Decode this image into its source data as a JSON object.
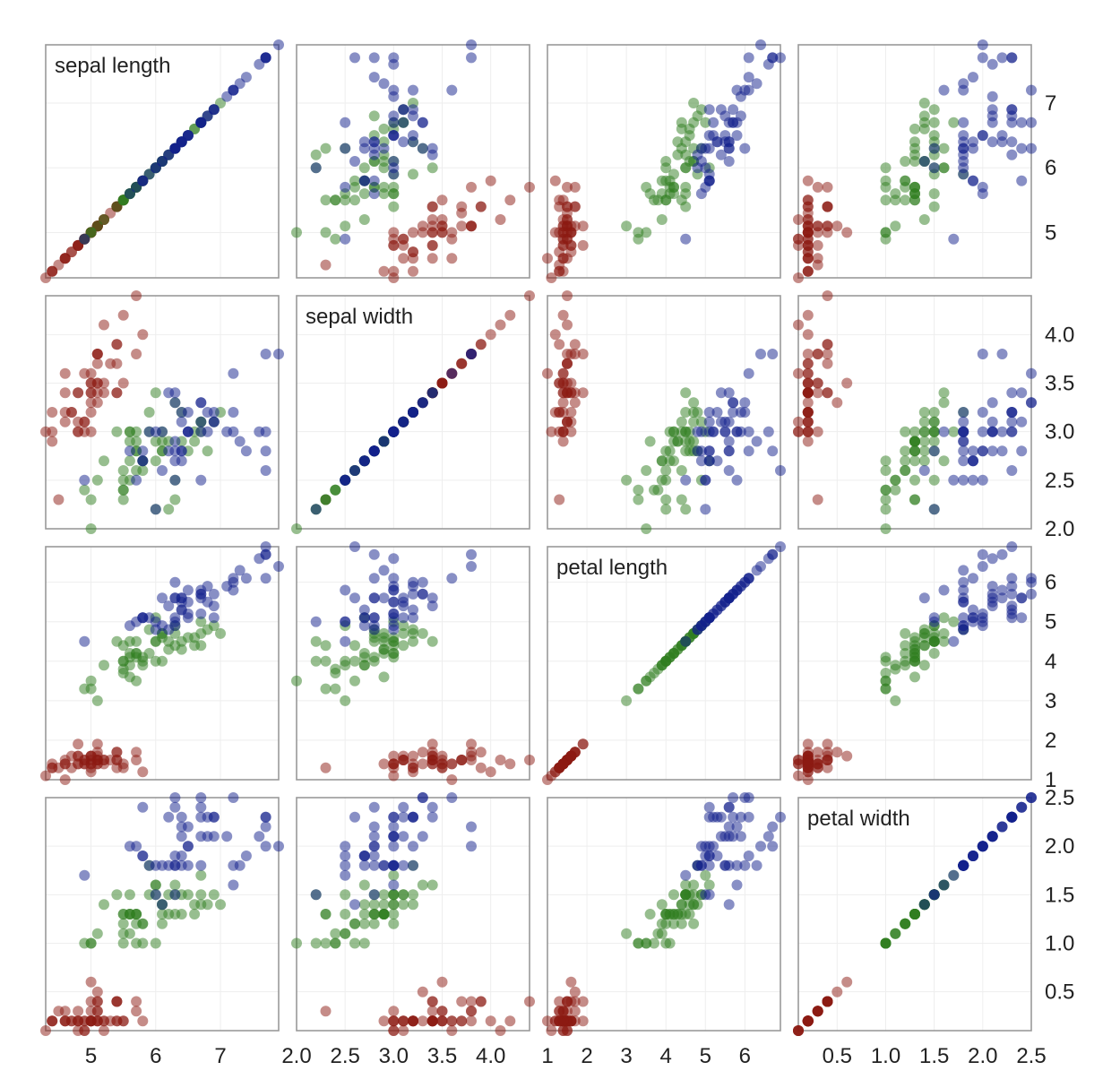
{
  "chart_data": {
    "type": "scatter",
    "subtype": "scatter-matrix",
    "title": "",
    "variables": [
      {
        "key": "sepal_length",
        "label": "sepal length",
        "range": [
          4.3,
          7.9
        ],
        "ticks": [
          5,
          6,
          7
        ],
        "tick_labels": [
          "5",
          "6",
          "7"
        ]
      },
      {
        "key": "sepal_width",
        "label": "sepal width",
        "range": [
          2.0,
          4.4
        ],
        "ticks": [
          2.0,
          2.5,
          3.0,
          3.5,
          4.0
        ],
        "tick_labels": [
          "2.0",
          "2.5",
          "3.0",
          "3.5",
          "4.0"
        ]
      },
      {
        "key": "petal_length",
        "label": "petal length",
        "range": [
          1.0,
          6.9
        ],
        "ticks": [
          1,
          2,
          3,
          4,
          5,
          6
        ],
        "tick_labels": [
          "1",
          "2",
          "3",
          "4",
          "5",
          "6"
        ]
      },
      {
        "key": "petal_width",
        "label": "petal width",
        "range": [
          0.1,
          2.5
        ],
        "ticks": [
          0.5,
          1.0,
          1.5,
          2.0,
          2.5
        ],
        "tick_labels": [
          "0.5",
          "1.0",
          "1.5",
          "2.0",
          "2.5"
        ]
      }
    ],
    "bottom_axis_ticks": [
      [
        "5",
        "6",
        "7"
      ],
      [
        "2.0",
        "2.5",
        "3.0",
        "3.5",
        "4.0"
      ],
      [
        "1",
        "2",
        "3",
        "4",
        "5",
        "6"
      ],
      [
        "0.5",
        "1.0",
        "1.5",
        "2.0",
        "2.5"
      ]
    ],
    "right_axis_ticks": [
      [
        "5",
        "6",
        "7"
      ],
      [
        "2.0",
        "2.5",
        "3.0",
        "3.5",
        "4.0"
      ],
      [
        "1",
        "2",
        "3",
        "4",
        "5",
        "6"
      ],
      [
        "0.5",
        "1.0",
        "1.5",
        "2.0",
        "2.5"
      ]
    ],
    "marker_opacity": 0.5,
    "grid": true,
    "legend": "none",
    "series": [
      {
        "color": "#8b1a12",
        "points": [
          [
            5.1,
            3.5,
            1.4,
            0.2
          ],
          [
            4.9,
            3.0,
            1.4,
            0.2
          ],
          [
            4.7,
            3.2,
            1.3,
            0.2
          ],
          [
            4.6,
            3.1,
            1.5,
            0.2
          ],
          [
            5.0,
            3.6,
            1.4,
            0.2
          ],
          [
            5.4,
            3.9,
            1.7,
            0.4
          ],
          [
            4.6,
            3.4,
            1.4,
            0.3
          ],
          [
            5.0,
            3.4,
            1.5,
            0.2
          ],
          [
            4.4,
            2.9,
            1.4,
            0.2
          ],
          [
            4.9,
            3.1,
            1.5,
            0.1
          ],
          [
            5.4,
            3.7,
            1.5,
            0.2
          ],
          [
            4.8,
            3.4,
            1.6,
            0.2
          ],
          [
            4.8,
            3.0,
            1.4,
            0.1
          ],
          [
            4.3,
            3.0,
            1.1,
            0.1
          ],
          [
            5.8,
            4.0,
            1.2,
            0.2
          ],
          [
            5.7,
            4.4,
            1.5,
            0.4
          ],
          [
            5.4,
            3.9,
            1.3,
            0.4
          ],
          [
            5.1,
            3.5,
            1.4,
            0.3
          ],
          [
            5.7,
            3.8,
            1.7,
            0.3
          ],
          [
            5.1,
            3.8,
            1.5,
            0.3
          ],
          [
            5.4,
            3.4,
            1.7,
            0.2
          ],
          [
            5.1,
            3.7,
            1.5,
            0.4
          ],
          [
            4.6,
            3.6,
            1.0,
            0.2
          ],
          [
            5.1,
            3.3,
            1.7,
            0.5
          ],
          [
            4.8,
            3.4,
            1.9,
            0.2
          ],
          [
            5.0,
            3.0,
            1.6,
            0.2
          ],
          [
            5.0,
            3.4,
            1.6,
            0.4
          ],
          [
            5.2,
            3.5,
            1.5,
            0.2
          ],
          [
            5.2,
            3.4,
            1.4,
            0.2
          ],
          [
            4.7,
            3.2,
            1.6,
            0.2
          ],
          [
            4.8,
            3.1,
            1.6,
            0.2
          ],
          [
            5.4,
            3.4,
            1.5,
            0.4
          ],
          [
            5.2,
            4.1,
            1.5,
            0.1
          ],
          [
            5.5,
            4.2,
            1.4,
            0.2
          ],
          [
            4.9,
            3.1,
            1.5,
            0.2
          ],
          [
            5.0,
            3.2,
            1.2,
            0.2
          ],
          [
            5.5,
            3.5,
            1.3,
            0.2
          ],
          [
            4.9,
            3.6,
            1.4,
            0.1
          ],
          [
            4.4,
            3.0,
            1.3,
            0.2
          ],
          [
            5.1,
            3.4,
            1.5,
            0.2
          ],
          [
            5.0,
            3.5,
            1.3,
            0.3
          ],
          [
            4.5,
            2.3,
            1.3,
            0.3
          ],
          [
            4.4,
            3.2,
            1.3,
            0.2
          ],
          [
            5.0,
            3.5,
            1.6,
            0.6
          ],
          [
            5.1,
            3.8,
            1.9,
            0.4
          ],
          [
            4.8,
            3.0,
            1.4,
            0.3
          ],
          [
            5.1,
            3.8,
            1.6,
            0.2
          ],
          [
            4.6,
            3.2,
            1.4,
            0.2
          ],
          [
            5.3,
            3.7,
            1.5,
            0.2
          ],
          [
            5.0,
            3.3,
            1.4,
            0.2
          ]
        ]
      },
      {
        "color": "#2f7d1f",
        "points": [
          [
            7.0,
            3.2,
            4.7,
            1.4
          ],
          [
            6.4,
            3.2,
            4.5,
            1.5
          ],
          [
            6.9,
            3.1,
            4.9,
            1.5
          ],
          [
            5.5,
            2.3,
            4.0,
            1.3
          ],
          [
            6.5,
            2.8,
            4.6,
            1.5
          ],
          [
            5.7,
            2.8,
            4.5,
            1.3
          ],
          [
            6.3,
            3.3,
            4.7,
            1.6
          ],
          [
            4.9,
            2.4,
            3.3,
            1.0
          ],
          [
            6.6,
            2.9,
            4.6,
            1.3
          ],
          [
            5.2,
            2.7,
            3.9,
            1.4
          ],
          [
            5.0,
            2.0,
            3.5,
            1.0
          ],
          [
            5.9,
            3.0,
            4.2,
            1.5
          ],
          [
            6.0,
            2.2,
            4.0,
            1.0
          ],
          [
            6.1,
            2.9,
            4.7,
            1.4
          ],
          [
            5.6,
            2.9,
            3.6,
            1.3
          ],
          [
            6.7,
            3.1,
            4.4,
            1.4
          ],
          [
            5.6,
            3.0,
            4.5,
            1.5
          ],
          [
            5.8,
            2.7,
            4.1,
            1.0
          ],
          [
            6.2,
            2.2,
            4.5,
            1.5
          ],
          [
            5.6,
            2.5,
            3.9,
            1.1
          ],
          [
            5.9,
            3.2,
            4.8,
            1.8
          ],
          [
            6.1,
            2.8,
            4.0,
            1.3
          ],
          [
            6.3,
            2.5,
            4.9,
            1.5
          ],
          [
            6.1,
            2.8,
            4.7,
            1.2
          ],
          [
            6.4,
            2.9,
            4.3,
            1.3
          ],
          [
            6.6,
            3.0,
            4.4,
            1.4
          ],
          [
            6.8,
            2.8,
            4.8,
            1.4
          ],
          [
            6.7,
            3.0,
            5.0,
            1.7
          ],
          [
            6.0,
            2.9,
            4.5,
            1.5
          ],
          [
            5.7,
            2.6,
            3.5,
            1.0
          ],
          [
            5.5,
            2.4,
            3.8,
            1.1
          ],
          [
            5.5,
            2.4,
            3.7,
            1.0
          ],
          [
            5.8,
            2.7,
            3.9,
            1.2
          ],
          [
            6.0,
            2.7,
            5.1,
            1.6
          ],
          [
            5.4,
            3.0,
            4.5,
            1.5
          ],
          [
            6.0,
            3.4,
            4.5,
            1.6
          ],
          [
            6.7,
            3.1,
            4.7,
            1.5
          ],
          [
            6.3,
            2.3,
            4.4,
            1.3
          ],
          [
            5.6,
            3.0,
            4.1,
            1.3
          ],
          [
            5.5,
            2.5,
            4.0,
            1.3
          ],
          [
            5.5,
            2.6,
            4.4,
            1.2
          ],
          [
            6.1,
            3.0,
            4.6,
            1.4
          ],
          [
            5.8,
            2.6,
            4.0,
            1.2
          ],
          [
            5.0,
            2.3,
            3.3,
            1.0
          ],
          [
            5.6,
            2.7,
            4.2,
            1.3
          ],
          [
            5.7,
            3.0,
            4.2,
            1.2
          ],
          [
            5.7,
            2.9,
            4.2,
            1.3
          ],
          [
            6.2,
            2.9,
            4.3,
            1.3
          ],
          [
            5.1,
            2.5,
            3.0,
            1.1
          ],
          [
            5.7,
            2.8,
            4.1,
            1.3
          ]
        ]
      },
      {
        "color": "#12208c",
        "points": [
          [
            6.3,
            3.3,
            6.0,
            2.5
          ],
          [
            5.8,
            2.7,
            5.1,
            1.9
          ],
          [
            7.1,
            3.0,
            5.9,
            2.1
          ],
          [
            6.3,
            2.9,
            5.6,
            1.8
          ],
          [
            6.5,
            3.0,
            5.8,
            2.2
          ],
          [
            7.6,
            3.0,
            6.6,
            2.1
          ],
          [
            4.9,
            2.5,
            4.5,
            1.7
          ],
          [
            7.3,
            2.9,
            6.3,
            1.8
          ],
          [
            6.7,
            2.5,
            5.8,
            1.8
          ],
          [
            7.2,
            3.6,
            6.1,
            2.5
          ],
          [
            6.5,
            3.2,
            5.1,
            2.0
          ],
          [
            6.4,
            2.7,
            5.3,
            1.9
          ],
          [
            6.8,
            3.0,
            5.5,
            2.1
          ],
          [
            5.7,
            2.5,
            5.0,
            2.0
          ],
          [
            5.8,
            2.8,
            5.1,
            2.4
          ],
          [
            6.4,
            3.2,
            5.3,
            2.3
          ],
          [
            6.5,
            3.0,
            5.5,
            1.8
          ],
          [
            7.7,
            3.8,
            6.7,
            2.2
          ],
          [
            7.7,
            2.6,
            6.9,
            2.3
          ],
          [
            6.0,
            2.2,
            5.0,
            1.5
          ],
          [
            6.9,
            3.2,
            5.7,
            2.3
          ],
          [
            5.6,
            2.8,
            4.9,
            2.0
          ],
          [
            7.7,
            2.8,
            6.7,
            2.0
          ],
          [
            6.3,
            2.7,
            4.9,
            1.8
          ],
          [
            6.7,
            3.3,
            5.7,
            2.1
          ],
          [
            7.2,
            3.2,
            6.0,
            1.8
          ],
          [
            6.2,
            2.8,
            4.8,
            1.8
          ],
          [
            6.1,
            3.0,
            4.9,
            1.8
          ],
          [
            6.4,
            2.8,
            5.6,
            2.1
          ],
          [
            7.2,
            3.0,
            5.8,
            1.6
          ],
          [
            7.4,
            2.8,
            6.1,
            1.9
          ],
          [
            7.9,
            3.8,
            6.4,
            2.0
          ],
          [
            6.4,
            2.8,
            5.6,
            2.2
          ],
          [
            6.3,
            2.8,
            5.1,
            1.5
          ],
          [
            6.1,
            2.6,
            5.6,
            1.4
          ],
          [
            7.7,
            3.0,
            6.1,
            2.3
          ],
          [
            6.3,
            3.4,
            5.6,
            2.4
          ],
          [
            6.4,
            3.1,
            5.5,
            1.8
          ],
          [
            6.0,
            3.0,
            4.8,
            1.8
          ],
          [
            6.9,
            3.1,
            5.4,
            2.1
          ],
          [
            6.7,
            3.1,
            5.6,
            2.4
          ],
          [
            6.9,
            3.1,
            5.1,
            2.3
          ],
          [
            5.8,
            2.7,
            5.1,
            1.9
          ],
          [
            6.8,
            3.2,
            5.9,
            2.3
          ],
          [
            6.7,
            3.3,
            5.7,
            2.5
          ],
          [
            6.7,
            3.0,
            5.2,
            2.3
          ],
          [
            6.3,
            2.5,
            5.0,
            1.9
          ],
          [
            6.5,
            3.0,
            5.2,
            2.0
          ],
          [
            6.2,
            3.4,
            5.4,
            2.3
          ],
          [
            5.9,
            3.0,
            5.1,
            1.8
          ]
        ]
      }
    ]
  }
}
